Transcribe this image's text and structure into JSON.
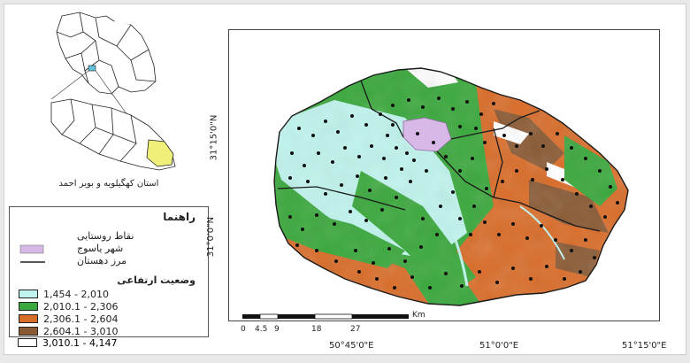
{
  "inset_title": "استان کهگیلویه و بویر احمد",
  "legend": {
    "title": "راهنما",
    "symbols": [
      {
        "label": "نقاط روستایی",
        "kind": "dot"
      },
      {
        "label": "شهر یاسوج",
        "kind": "area",
        "color": "#d8b8e6"
      },
      {
        "label": "مرز دهستان",
        "kind": "line"
      }
    ],
    "classes_title": "وضعیت ارتفاعی",
    "classes": [
      {
        "label": "1,454 - 2,010",
        "color": "#bff3ec"
      },
      {
        "label": "2,010.1 - 2,306",
        "color": "#3aa83c"
      },
      {
        "label": "2,306.1 - 2,604",
        "color": "#d96d2a"
      },
      {
        "label": "2,604.1 - 3,010",
        "color": "#8a5a34"
      },
      {
        "label": "3,010.1 - 4,147",
        "color": "#ffffff"
      }
    ]
  },
  "axes": {
    "y_labels": [
      "31°15'0\"N",
      "31°0'0\"N"
    ],
    "x_labels": [
      "50°45'0\"E",
      "51°0'0\"E",
      "51°15'0\"E"
    ]
  },
  "scalebar": {
    "ticks": [
      "0",
      "4.5",
      "9",
      "18",
      "27"
    ],
    "unit": "Km"
  }
}
